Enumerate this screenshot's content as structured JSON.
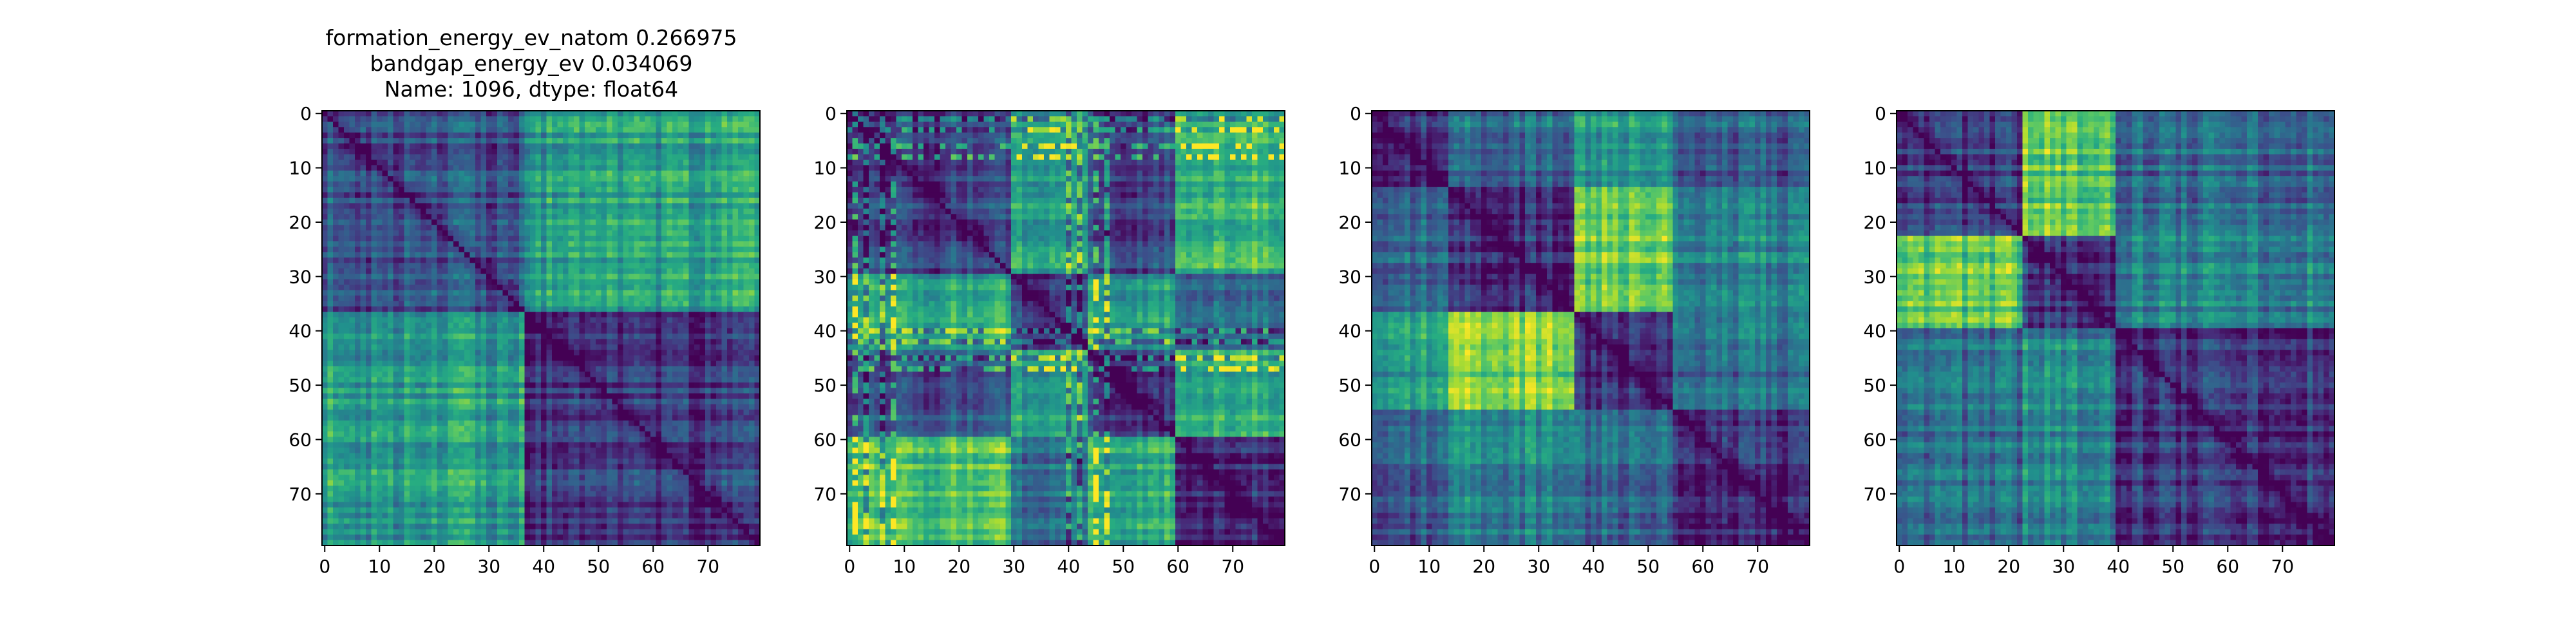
{
  "figure": {
    "title_lines": [
      "formation_energy_ev_natom    0.266975",
      "bandgap_energy_ev            0.034069",
      "Name: 1096, dtype: float64"
    ]
  },
  "chart_data": [
    {
      "type": "heatmap",
      "title": "",
      "colormap": "viridis",
      "size": 80,
      "xlim": [
        0,
        79
      ],
      "ylim": [
        79,
        0
      ],
      "xticks": [
        0,
        10,
        20,
        30,
        40,
        50,
        60,
        70
      ],
      "yticks": [
        0,
        10,
        20,
        30,
        40,
        50,
        60,
        70
      ],
      "blocks": [
        0,
        37,
        80
      ],
      "within_level": [
        0.25,
        0.15
      ],
      "between_level": [
        [
          0.25,
          0.55
        ],
        [
          0.55,
          0.15
        ]
      ],
      "peak_between": [
        0.98,
        0.9
      ]
    },
    {
      "type": "heatmap",
      "title": "",
      "colormap": "viridis",
      "size": 80,
      "xlim": [
        0,
        79
      ],
      "ylim": [
        79,
        0
      ],
      "xticks": [
        0,
        10,
        20,
        30,
        40,
        50,
        60,
        70
      ],
      "yticks": [
        0,
        10,
        20,
        30,
        40,
        50,
        60,
        70
      ],
      "blocks": [
        0,
        30,
        44,
        60,
        80
      ],
      "within_level": [
        0.2,
        0.15,
        0.2,
        0.15
      ],
      "between_level": [
        [
          0.2,
          0.55,
          0.25,
          0.7
        ],
        [
          0.55,
          0.15,
          0.55,
          0.35
        ],
        [
          0.25,
          0.55,
          0.2,
          0.65
        ],
        [
          0.7,
          0.35,
          0.65,
          0.15
        ]
      ],
      "stripe_rows": [
        1,
        3,
        6,
        8,
        40,
        42,
        45,
        47
      ],
      "peak_between": [
        0.95,
        0.85
      ]
    },
    {
      "type": "heatmap",
      "title": "",
      "colormap": "viridis",
      "size": 80,
      "xlim": [
        0,
        79
      ],
      "ylim": [
        79,
        0
      ],
      "xticks": [
        0,
        10,
        20,
        30,
        40,
        50,
        60,
        70
      ],
      "yticks": [
        0,
        10,
        20,
        30,
        40,
        50,
        60,
        70
      ],
      "blocks": [
        0,
        14,
        37,
        55,
        80
      ],
      "within_level": [
        0.15,
        0.15,
        0.12,
        0.12
      ],
      "between_level": [
        [
          0.15,
          0.35,
          0.55,
          0.3
        ],
        [
          0.35,
          0.15,
          0.8,
          0.45
        ],
        [
          0.55,
          0.8,
          0.12,
          0.35
        ],
        [
          0.3,
          0.45,
          0.35,
          0.12
        ]
      ],
      "peak_between": [
        0.95,
        0.85
      ]
    },
    {
      "type": "heatmap",
      "title": "",
      "colormap": "viridis",
      "size": 80,
      "xlim": [
        0,
        79
      ],
      "ylim": [
        79,
        0
      ],
      "xticks": [
        0,
        10,
        20,
        30,
        40,
        50,
        60,
        70
      ],
      "yticks": [
        0,
        10,
        20,
        30,
        40,
        50,
        60,
        70
      ],
      "blocks": [
        0,
        23,
        40,
        80
      ],
      "within_level": [
        0.18,
        0.15,
        0.15
      ],
      "between_level": [
        [
          0.18,
          0.75,
          0.35
        ],
        [
          0.75,
          0.15,
          0.45
        ],
        [
          0.35,
          0.45,
          0.15
        ]
      ],
      "peak_between": [
        0.95,
        0.85
      ]
    }
  ]
}
